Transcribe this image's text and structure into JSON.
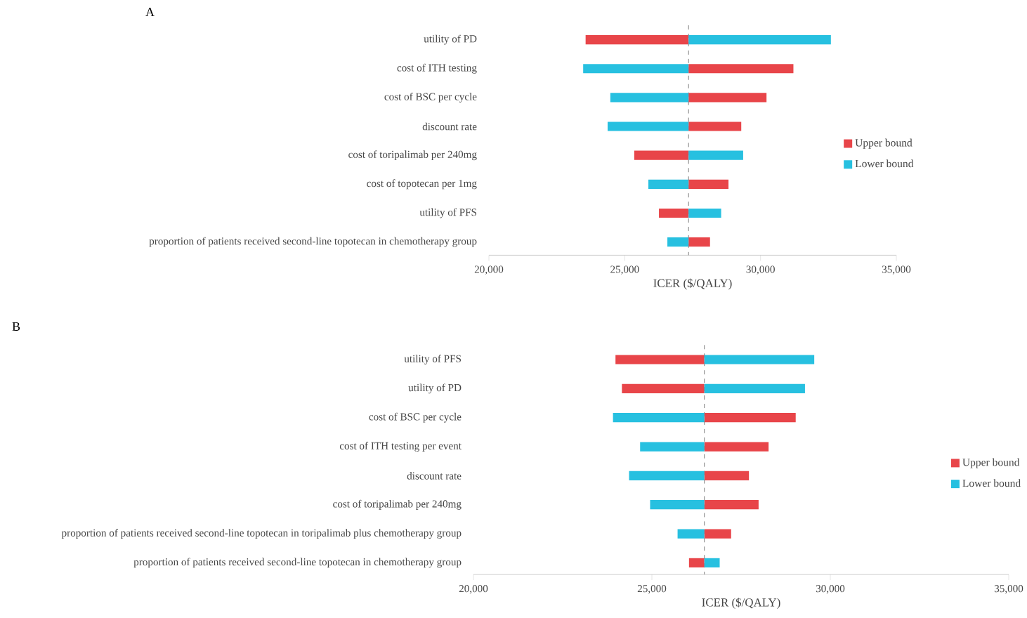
{
  "chart_data": [
    {
      "type": "bar",
      "orientation": "horizontal",
      "title": "A",
      "xlabel": "ICER ($/QALY)",
      "categories": [
        "utility of PD",
        "cost of ITH testing",
        "cost of BSC per cycle",
        "discount rate",
        "cost of toripalimab per 240mg",
        "cost of topotecan per 1mg",
        "utility of PFS",
        "proportion of patients received second-line topotecan in chemotherapy group"
      ],
      "series": [
        {
          "name": "Upper bound",
          "color": "#e84549",
          "base": [
            27350,
            27350,
            27350,
            27350,
            27350,
            27350,
            27350,
            27350
          ],
          "values": [
            -3790,
            3860,
            2870,
            1940,
            -2000,
            1470,
            -1090,
            790
          ]
        },
        {
          "name": "Lower bound",
          "color": "#27c0e0",
          "base": [
            27350,
            27350,
            27350,
            27350,
            27350,
            27350,
            27350,
            27350
          ],
          "values": [
            5240,
            -3880,
            -2880,
            -2980,
            2010,
            -1480,
            1200,
            -780
          ]
        }
      ],
      "xlim": [
        20000,
        35000
      ],
      "xticks": [
        {
          "value": 20000,
          "label": "20,000"
        },
        {
          "value": 25000,
          "label": "25,000"
        },
        {
          "value": 30000,
          "label": "30,000"
        },
        {
          "value": 35000,
          "label": "35,000"
        }
      ],
      "ref_lines": [
        {
          "axis": "x",
          "value": 27350,
          "color": "#808080",
          "line_style": "dashed"
        }
      ],
      "legend": "right"
    },
    {
      "type": "bar",
      "orientation": "horizontal",
      "title": "B",
      "xlabel": "ICER ($/QALY)",
      "categories": [
        "utility of PFS",
        "utility of PD",
        "cost of BSC per cycle",
        "cost of ITH testing per event",
        "discount rate",
        "cost of toripalimab per 240mg",
        "proportion of patients received second-line topotecan in toripalimab plus chemotherapy group",
        "proportion of patients received second-line topotecan in chemotherapy group"
      ],
      "series": [
        {
          "name": "Upper bound",
          "color": "#e84549",
          "base": [
            26470,
            26470,
            26470,
            26470,
            26470,
            26470,
            26470,
            26470
          ],
          "values": [
            -2490,
            -2310,
            2560,
            1800,
            1250,
            1520,
            750,
            -430
          ]
        },
        {
          "name": "Lower bound",
          "color": "#27c0e0",
          "base": [
            26470,
            26470,
            26470,
            26470,
            26470,
            26470,
            26470,
            26470
          ],
          "values": [
            3080,
            2820,
            -2560,
            -1800,
            -2110,
            -1520,
            -750,
            430
          ]
        }
      ],
      "xlim": [
        20000,
        35000
      ],
      "xticks": [
        {
          "value": 20000,
          "label": "20,000"
        },
        {
          "value": 25000,
          "label": "25,000"
        },
        {
          "value": 30000,
          "label": "30,000"
        },
        {
          "value": 35000,
          "label": "35,000"
        }
      ],
      "ref_lines": [
        {
          "axis": "x",
          "value": 26470,
          "color": "#808080",
          "line_style": "dashed"
        }
      ],
      "legend": "right"
    }
  ]
}
